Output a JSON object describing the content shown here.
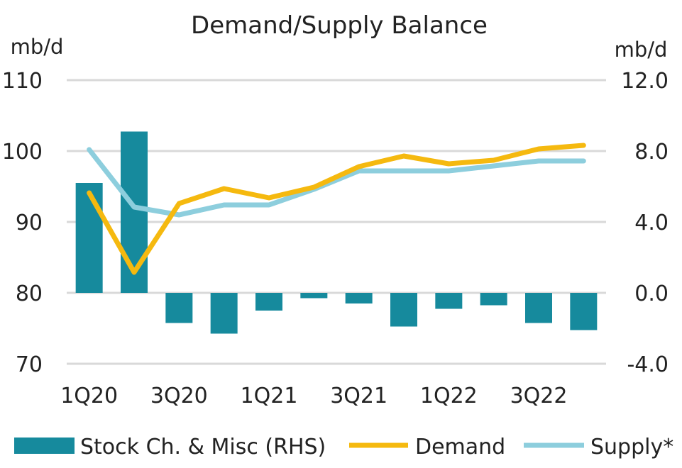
{
  "chart_data": {
    "type": "bar+line",
    "title": "Demand/Supply Balance",
    "ylabel_left": "mb/d",
    "ylabel_right": "mb/d",
    "ylim_left": [
      70,
      110
    ],
    "ylim_right": [
      -4.0,
      12.0
    ],
    "yticks_left": [
      "110",
      "100",
      "90",
      "80",
      "70"
    ],
    "yticks_right": [
      "12.0",
      "8.0",
      "4.0",
      "0.0",
      "-4.0"
    ],
    "categories": [
      "1Q20",
      "2Q20",
      "3Q20",
      "4Q20",
      "1Q21",
      "2Q21",
      "3Q21",
      "4Q21",
      "1Q22",
      "2Q22",
      "3Q22",
      "4Q22"
    ],
    "xtick_labels": [
      "1Q20",
      "",
      "3Q20",
      "",
      "1Q21",
      "",
      "3Q21",
      "",
      "1Q22",
      "",
      "3Q22",
      ""
    ],
    "grid": true,
    "legend_position": "bottom",
    "series": [
      {
        "name": "Stock Ch. & Misc (RHS)",
        "kind": "bar",
        "axis": "right",
        "color": "#168A9D",
        "values": [
          6.2,
          9.1,
          -1.7,
          -2.3,
          -1.0,
          -0.3,
          -0.6,
          -1.9,
          -0.9,
          -0.7,
          -1.7,
          -2.1
        ]
      },
      {
        "name": "Demand",
        "kind": "line",
        "axis": "left",
        "color": "#F5B90F",
        "values": [
          94.1,
          82.9,
          92.6,
          94.7,
          93.4,
          94.9,
          97.8,
          99.3,
          98.2,
          98.7,
          100.3,
          100.8
        ]
      },
      {
        "name": "Supply*",
        "kind": "line",
        "axis": "left",
        "color": "#8DCEDD",
        "values": [
          100.2,
          92.1,
          91.0,
          92.4,
          92.4,
          94.6,
          97.2,
          97.2,
          97.2,
          97.9,
          98.6,
          98.6
        ]
      }
    ]
  }
}
